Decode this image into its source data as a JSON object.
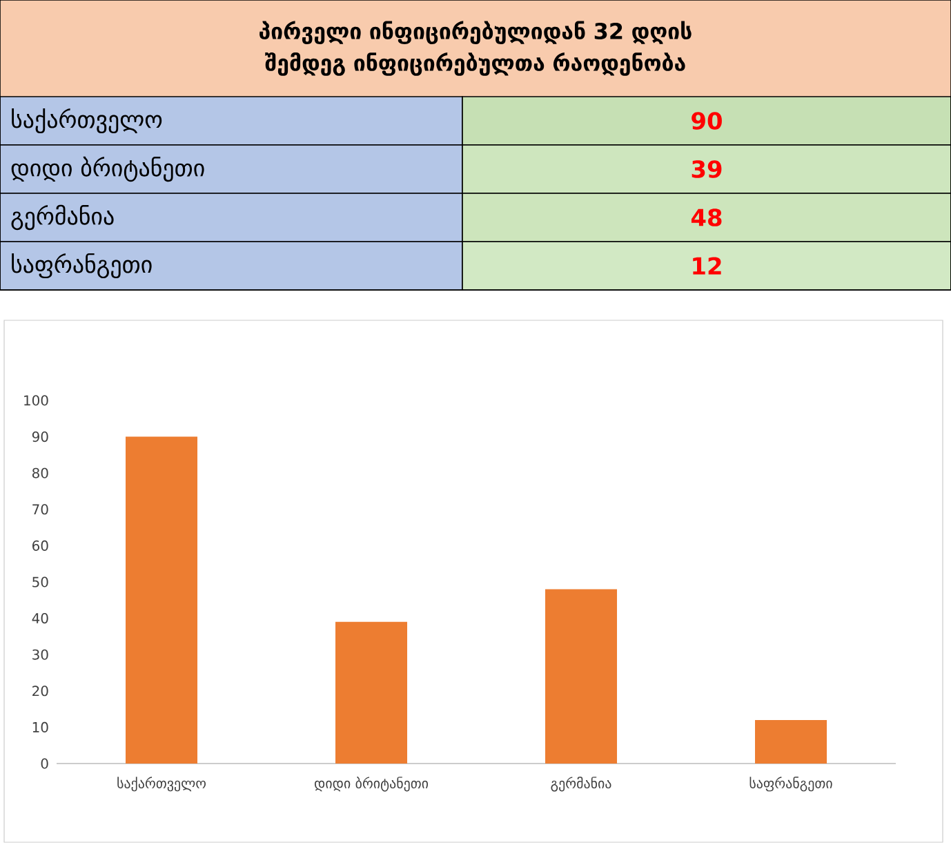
{
  "chart_data": [
    {
      "type": "heatmap",
      "title": "პირველი ინფიცირებულიდან 32 დღის შემდეგ ინფიცირებულთა რაოდენობა",
      "categories": [
        null
      ],
      "y_categories": [
        "საქართველო",
        "დიდი ბრიტანეთი",
        "გერმანია",
        "საფრანგეთი"
      ],
      "cells": [
        [
          90
        ],
        [
          39
        ],
        [
          48
        ],
        [
          12
        ]
      ],
      "cell_labels": [
        [
          "90"
        ],
        [
          "39"
        ],
        [
          "48"
        ],
        [
          "12"
        ]
      ]
    },
    {
      "type": "bar",
      "categories": [
        "საქართველო",
        "დიდი ბრიტანეთი",
        "გერმანია",
        "საფრანგეთი"
      ],
      "values": [
        90,
        39,
        48,
        12
      ],
      "color": "#ed7d31",
      "ylim": [
        0,
        100
      ],
      "yticks": [
        0,
        10,
        20,
        30,
        40,
        50,
        60,
        70,
        80,
        90,
        100
      ]
    }
  ]
}
